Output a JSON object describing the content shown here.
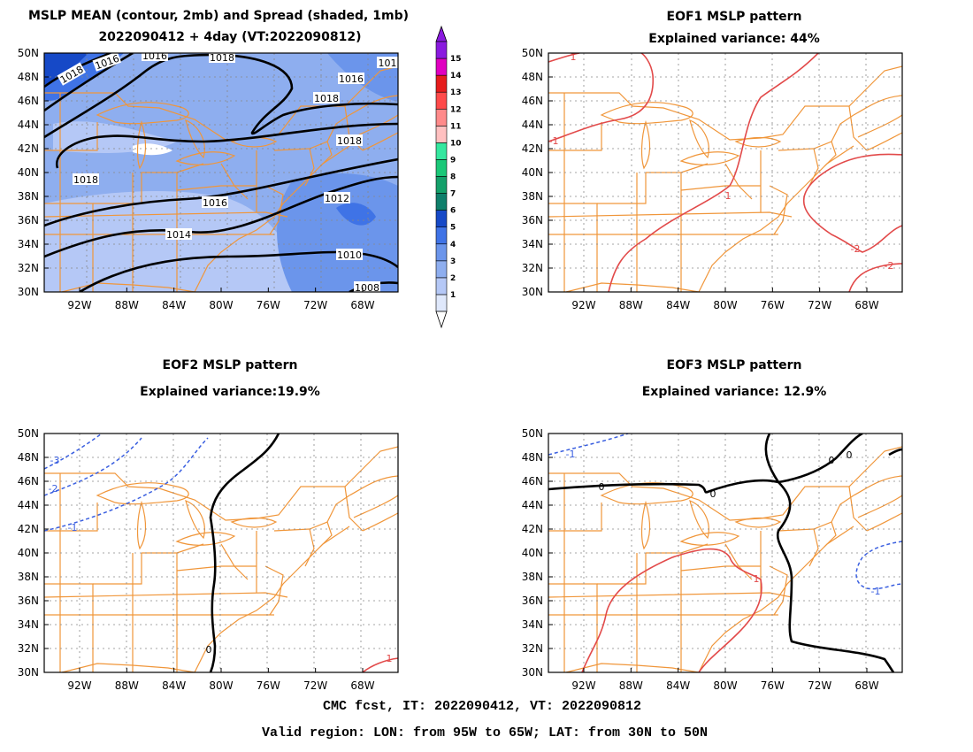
{
  "colors": {
    "boundary": "#f0963a",
    "black_contour": "#000000",
    "positive_contour": "#e24a4a",
    "negative_contour": "#3a5fe0",
    "grid": "#888888",
    "spread_levels": [
      "#dfe8fb",
      "#b5c8f6",
      "#8eaeef",
      "#6b95eb",
      "#3f73e6",
      "#1649c7",
      "#0f7f6b",
      "#14a06a",
      "#1bc878",
      "#35e79f",
      "#ffc0c0",
      "#ff8a8a",
      "#ff4a4a",
      "#e61c1c",
      "#e000c0",
      "#8a1adf"
    ]
  },
  "axes": {
    "lat_ticks": [
      "30N",
      "32N",
      "34N",
      "36N",
      "38N",
      "40N",
      "42N",
      "44N",
      "46N",
      "48N",
      "50N"
    ],
    "lon_ticks": [
      "92W",
      "88W",
      "84W",
      "80W",
      "76W",
      "72W",
      "68W"
    ]
  },
  "colorbar": {
    "labels": [
      "1",
      "2",
      "3",
      "4",
      "5",
      "6",
      "7",
      "8",
      "9",
      "10",
      "11",
      "12",
      "13",
      "14",
      "15"
    ]
  },
  "panels": [
    {
      "id": "mean",
      "title_lines": [
        "MSLP MEAN (contour, 2mb) and Spread (shaded, 1mb)",
        "2022090412 + 4day (VT:2022090812)"
      ],
      "contour_labels": [
        "1008",
        "1010",
        "1012",
        "1014",
        "1016",
        "1018",
        "1010",
        "1012",
        "1014",
        "1016",
        "1018",
        "1016",
        "1018",
        "1016",
        "1018",
        "1018",
        "1014",
        "1016",
        "1012",
        "1010",
        "1008",
        "101"
      ]
    },
    {
      "id": "eof1",
      "title_lines": [
        "EOF1 MSLP pattern",
        "Explained variance: 44%"
      ],
      "contour_labels": [
        "1",
        "-1",
        "1",
        "-2",
        "-2",
        "-1",
        "-3"
      ]
    },
    {
      "id": "eof2",
      "title_lines": [
        "EOF2 MSLP pattern",
        "Explained variance:19.9%"
      ],
      "contour_labels": [
        "-3",
        "-2",
        "-1",
        "0",
        "-1"
      ]
    },
    {
      "id": "eof3",
      "title_lines": [
        "EOF3 MSLP pattern",
        "Explained variance: 12.9%"
      ],
      "contour_labels": [
        "-1",
        "0",
        "0",
        "0",
        "0",
        "0",
        "1",
        "-1"
      ]
    }
  ],
  "footer": {
    "line1": "CMC fcst, IT: 2022090412, VT: 2022090812",
    "line2": "Valid region: LON: from 95W to 65W; LAT: from 30N to 50N"
  }
}
